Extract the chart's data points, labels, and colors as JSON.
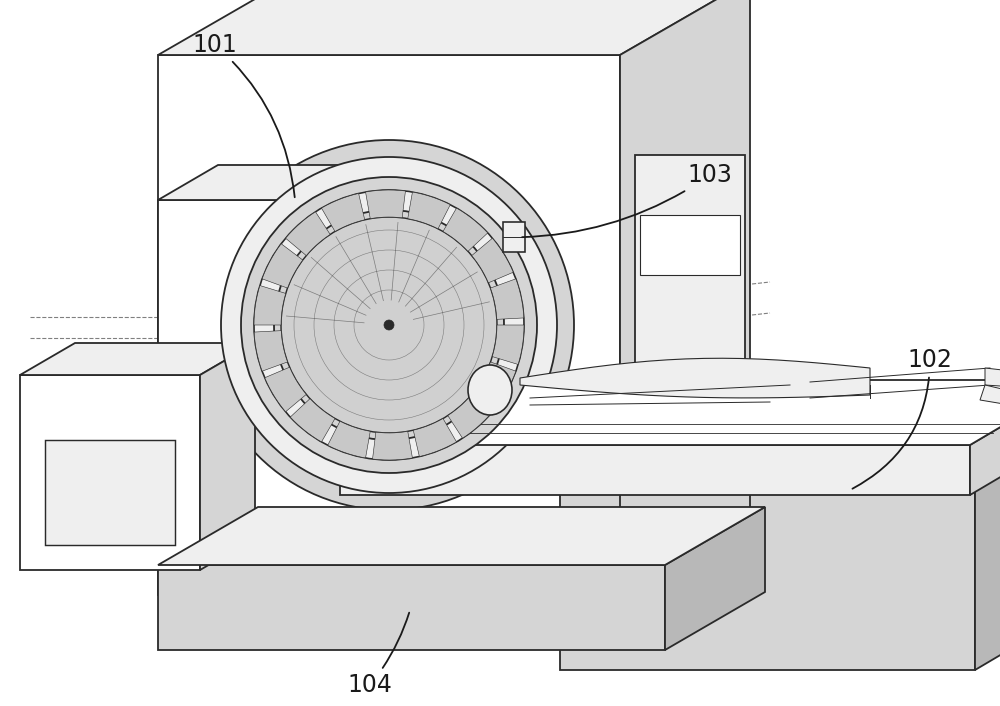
{
  "bg_color": "#ffffff",
  "line_color": "#2a2a2a",
  "lw": 1.3,
  "label_101": "101",
  "label_102": "102",
  "label_103": "103",
  "label_104": "104",
  "label_fontsize": 17,
  "figsize": [
    10.0,
    7.06
  ],
  "dpi": 100,
  "face_white": "#ffffff",
  "face_light": "#efefef",
  "face_mid": "#d5d5d5",
  "face_dark": "#b8b8b8",
  "face_vdark": "#a0a0a0"
}
